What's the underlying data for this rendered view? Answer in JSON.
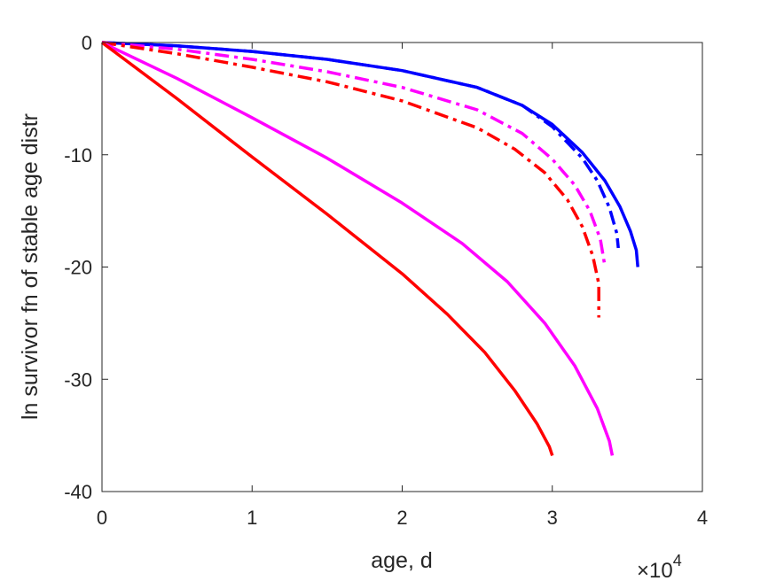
{
  "chart_data": {
    "type": "line",
    "title": "",
    "xlabel": "age, d",
    "ylabel": "ln survivor fn of stable age distr",
    "x_exponent_label": {
      "base": "×10",
      "exponent": "4"
    },
    "xlim": [
      0,
      40000
    ],
    "ylim": [
      -40,
      0
    ],
    "xticks": [
      0,
      10000,
      20000,
      30000,
      40000
    ],
    "xtick_labels": [
      "0",
      "1",
      "2",
      "3",
      "4"
    ],
    "yticks": [
      0,
      -10,
      -20,
      -30,
      -40
    ],
    "ytick_labels": [
      "0",
      "-10",
      "-20",
      "-30",
      "-40"
    ],
    "grid": false,
    "legend": "none",
    "series": [
      {
        "color": "#0000ff",
        "style": "solid",
        "x": [
          0,
          5000,
          10000,
          15000,
          20000,
          25000,
          28000,
          30000,
          32000,
          33500,
          34500,
          35200,
          35600,
          35700
        ],
        "y": [
          0,
          -0.3,
          -0.8,
          -1.5,
          -2.5,
          -4.0,
          -5.6,
          -7.3,
          -9.8,
          -12.3,
          -14.6,
          -16.8,
          -18.5,
          -20.0
        ]
      },
      {
        "color": "#0000ff",
        "style": "dashdot",
        "x": [
          0,
          5000,
          10000,
          15000,
          20000,
          25000,
          28000,
          30000,
          32000,
          33000,
          33800,
          34300,
          34400
        ],
        "y": [
          0,
          -0.3,
          -0.8,
          -1.5,
          -2.5,
          -4.0,
          -5.6,
          -7.5,
          -10.3,
          -12.3,
          -14.7,
          -17.0,
          -18.3
        ]
      },
      {
        "color": "#ff00ff",
        "style": "dashdot",
        "x": [
          0,
          5000,
          10000,
          15000,
          20000,
          25000,
          28000,
          30000,
          31500,
          32500,
          33200,
          33500
        ],
        "y": [
          0,
          -0.6,
          -1.5,
          -2.6,
          -4.0,
          -6.0,
          -8.1,
          -10.4,
          -12.7,
          -15.0,
          -17.5,
          -19.9
        ]
      },
      {
        "color": "#ff0000",
        "style": "dashdot",
        "x": [
          0,
          5000,
          10000,
          15000,
          20000,
          25000,
          27500,
          29500,
          31000,
          32000,
          32700,
          33100,
          33100
        ],
        "y": [
          0,
          -1.0,
          -2.2,
          -3.5,
          -5.2,
          -7.6,
          -9.5,
          -11.6,
          -14.0,
          -16.4,
          -19.0,
          -21.5,
          -24.5
        ]
      },
      {
        "color": "#ff00ff",
        "style": "solid",
        "x": [
          0,
          5000,
          10000,
          15000,
          20000,
          24000,
          27000,
          29500,
          31500,
          33000,
          33800,
          34000
        ],
        "y": [
          0,
          -3.2,
          -6.7,
          -10.3,
          -14.3,
          -17.9,
          -21.3,
          -25.0,
          -28.8,
          -32.6,
          -35.5,
          -36.8
        ]
      },
      {
        "color": "#ff0000",
        "style": "solid",
        "x": [
          0,
          5000,
          10000,
          15000,
          20000,
          23000,
          25500,
          27500,
          29000,
          29800,
          30000
        ],
        "y": [
          0,
          -5.0,
          -10.2,
          -15.3,
          -20.6,
          -24.2,
          -27.6,
          -31.0,
          -34.0,
          -36.0,
          -36.8
        ]
      }
    ]
  }
}
